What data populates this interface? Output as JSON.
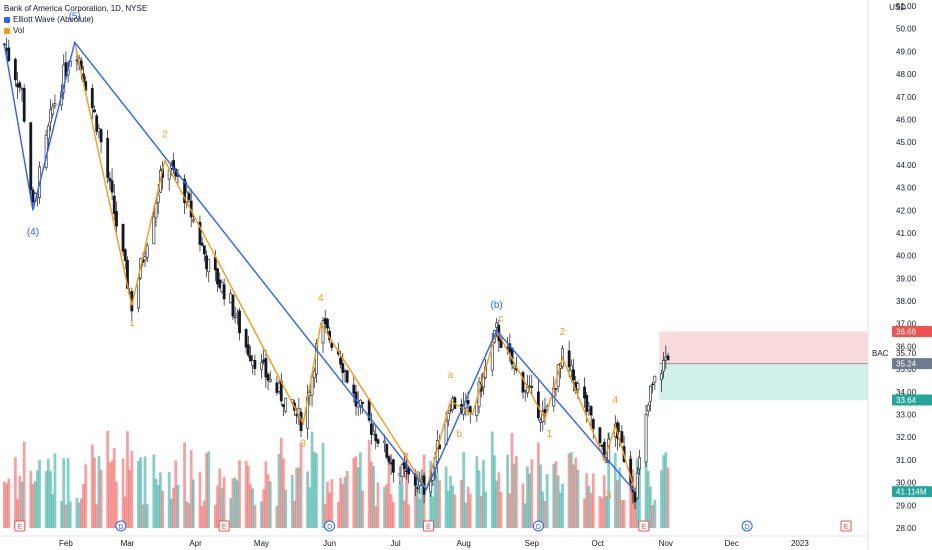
{
  "header": {
    "title": "Bank of America Corporation, 1D, NYSE",
    "indicator_1": "Elliott Wave (Absolute)",
    "indicator_2": "Vol",
    "currency": "USD"
  },
  "colors": {
    "up": "#26a69a",
    "down": "#ef5350",
    "wave_blue": "#2962ff",
    "wave_orange": "#f39c12",
    "stop_zone": "#f8d7da",
    "target_zone": "#cdeee8"
  },
  "chart_data": {
    "type": "candlestick",
    "symbol": "BAC",
    "interval": "1D",
    "ylim": [
      28.0,
      51.0
    ],
    "y_ticks": [
      28.0,
      29.0,
      30.0,
      31.0,
      32.0,
      33.0,
      34.0,
      35.0,
      36.0,
      37.0,
      38.0,
      39.0,
      40.0,
      41.0,
      42.0,
      43.0,
      44.0,
      45.0,
      46.0,
      47.0,
      48.0,
      49.0,
      50.0,
      51.0
    ],
    "x_ticks": [
      {
        "label": "Feb",
        "day": 30
      },
      {
        "label": "Mar",
        "day": 58
      },
      {
        "label": "Apr",
        "day": 89
      },
      {
        "label": "May",
        "day": 119
      },
      {
        "label": "Jun",
        "day": 150
      },
      {
        "label": "Jul",
        "day": 180
      },
      {
        "label": "Aug",
        "day": 211
      },
      {
        "label": "Sep",
        "day": 242
      },
      {
        "label": "Oct",
        "day": 272
      },
      {
        "label": "Nov",
        "day": 303
      },
      {
        "label": "Dec",
        "day": 333
      },
      {
        "label": "2023",
        "day": 364
      }
    ],
    "x_range": [
      0,
      395
    ],
    "price_labels": {
      "symbol": "BAC",
      "last": "35.70",
      "stop": "36.66",
      "entry": "35.24",
      "target": "33.64",
      "volume": "41.114M"
    },
    "position": {
      "day_start": 300,
      "day_end": 395,
      "stop": 36.66,
      "entry": 35.24,
      "target": 33.64
    },
    "pivots": [
      {
        "day": 2,
        "price": 49.3
      },
      {
        "day": 10,
        "price": 47.2
      },
      {
        "day": 15,
        "price": 42.0
      },
      {
        "day": 24,
        "price": 46.5
      },
      {
        "day": 34,
        "price": 49.4
      },
      {
        "day": 45,
        "price": 45.5
      },
      {
        "day": 60,
        "price": 37.8
      },
      {
        "day": 75,
        "price": 44.2
      },
      {
        "day": 83,
        "price": 43.0
      },
      {
        "day": 95,
        "price": 39.5
      },
      {
        "day": 104,
        "price": 38.2
      },
      {
        "day": 112,
        "price": 36.0
      },
      {
        "day": 125,
        "price": 34.2
      },
      {
        "day": 138,
        "price": 32.6
      },
      {
        "day": 146,
        "price": 37.0
      },
      {
        "day": 154,
        "price": 35.8
      },
      {
        "day": 162,
        "price": 33.5
      },
      {
        "day": 172,
        "price": 32.0
      },
      {
        "day": 180,
        "price": 30.6
      },
      {
        "day": 194,
        "price": 29.7
      },
      {
        "day": 205,
        "price": 33.6
      },
      {
        "day": 215,
        "price": 33.0
      },
      {
        "day": 226,
        "price": 36.7
      },
      {
        "day": 234,
        "price": 35.0
      },
      {
        "day": 248,
        "price": 32.8
      },
      {
        "day": 256,
        "price": 35.5
      },
      {
        "day": 265,
        "price": 33.8
      },
      {
        "day": 275,
        "price": 31.0
      },
      {
        "day": 280,
        "price": 32.5
      },
      {
        "day": 289,
        "price": 29.6
      },
      {
        "day": 296,
        "price": 34.0
      },
      {
        "day": 304,
        "price": 35.7
      }
    ],
    "volume_ylim": [
      0,
      100
    ],
    "events": [
      {
        "label": "E",
        "day": 9
      },
      {
        "label": "D",
        "day": 55
      },
      {
        "label": "E",
        "day": 102
      },
      {
        "label": "D",
        "day": 150
      },
      {
        "label": "E",
        "day": 195
      },
      {
        "label": "D",
        "day": 245
      },
      {
        "label": "E",
        "day": 293
      },
      {
        "label": "D",
        "day": 340
      },
      {
        "label": "E",
        "day": 385
      }
    ],
    "blue_waves": [
      {
        "day": 2,
        "price": 49.3
      },
      {
        "day": 15,
        "price": 42.0
      },
      {
        "day": 34,
        "price": 49.4
      },
      {
        "day": 194,
        "price": 29.7
      },
      {
        "day": 226,
        "price": 36.7
      },
      {
        "day": 289,
        "price": 29.6
      }
    ],
    "orange_waves": [
      {
        "day": 34,
        "price": 49.4
      },
      {
        "day": 60,
        "price": 37.8
      },
      {
        "day": 75,
        "price": 44.2
      },
      {
        "day": 138,
        "price": 32.6
      },
      {
        "day": 146,
        "price": 37.0
      },
      {
        "day": 194,
        "price": 29.7
      },
      {
        "day": 205,
        "price": 33.6
      },
      {
        "day": 215,
        "price": 33.0
      },
      {
        "day": 226,
        "price": 36.7
      },
      {
        "day": 248,
        "price": 32.8
      },
      {
        "day": 256,
        "price": 35.5
      },
      {
        "day": 275,
        "price": 31.0
      },
      {
        "day": 280,
        "price": 32.5
      },
      {
        "day": 289,
        "price": 29.6
      }
    ],
    "wave_labels": [
      {
        "text": "(5)",
        "day": 34,
        "price": 50.4,
        "color": "blue"
      },
      {
        "text": "(4)",
        "day": 15,
        "price": 40.9,
        "color": "blue"
      },
      {
        "text": "(b)",
        "day": 226,
        "price": 37.7,
        "color": "blue"
      },
      {
        "text": "2",
        "day": 75,
        "price": 45.2,
        "color": "orange"
      },
      {
        "text": "1",
        "day": 60,
        "price": 36.9,
        "color": "orange"
      },
      {
        "text": "4",
        "day": 146,
        "price": 38.0,
        "color": "orange"
      },
      {
        "text": "3",
        "day": 138,
        "price": 31.6,
        "color": "orange"
      },
      {
        "text": "a",
        "day": 205,
        "price": 34.6,
        "color": "orange"
      },
      {
        "text": "b",
        "day": 209,
        "price": 32.0,
        "color": "orange"
      },
      {
        "text": "c",
        "day": 228,
        "price": 37.1,
        "color": "orange"
      },
      {
        "text": "2",
        "day": 256,
        "price": 36.5,
        "color": "orange"
      },
      {
        "text": "1",
        "day": 250,
        "price": 32.0,
        "color": "orange"
      },
      {
        "text": "4",
        "day": 280,
        "price": 33.5,
        "color": "orange"
      },
      {
        "text": "3",
        "day": 277,
        "price": 29.3,
        "color": "orange"
      }
    ]
  }
}
